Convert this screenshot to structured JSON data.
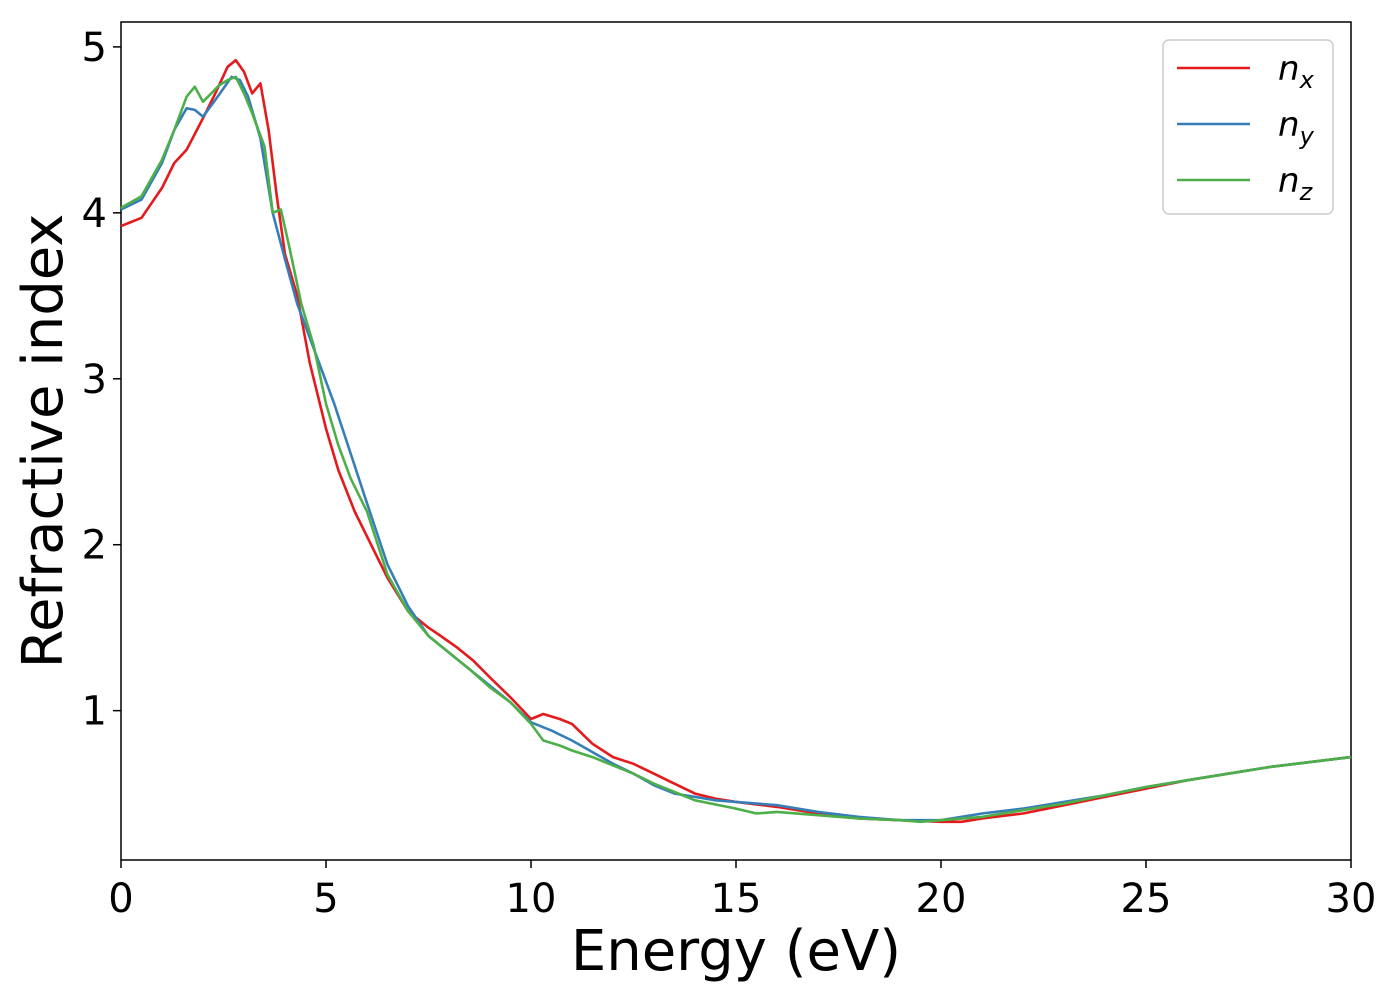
{
  "chart_data": {
    "type": "line",
    "xlabel": "Energy (eV)",
    "ylabel": "Refractive index",
    "xlim": [
      0,
      30
    ],
    "ylim": [
      0.1,
      5.15
    ],
    "xticks": [
      "0",
      "5",
      "10",
      "15",
      "20",
      "25",
      "30"
    ],
    "yticks": [
      "1",
      "2",
      "3",
      "4",
      "5"
    ],
    "grid": false,
    "legend_position": "top-right",
    "series": [
      {
        "name": "n",
        "subscript": "x",
        "color": "#e41a1c",
        "x": [
          0,
          0.5,
          1.0,
          1.3,
          1.6,
          2.0,
          2.3,
          2.6,
          2.8,
          3.0,
          3.2,
          3.4,
          3.6,
          3.8,
          4.0,
          4.3,
          4.6,
          5.0,
          5.3,
          5.7,
          6.0,
          6.5,
          7.0,
          7.5,
          7.8,
          8.2,
          8.6,
          9.0,
          9.5,
          10.0,
          10.3,
          10.7,
          11.0,
          11.5,
          12.0,
          12.5,
          13.0,
          13.5,
          14.0,
          14.5,
          15.0,
          16.0,
          17.0,
          18.0,
          19.0,
          20.0,
          20.5,
          21.0,
          22.0,
          23.0,
          24.0,
          25.0,
          26.0,
          27.0,
          28.0,
          29.0,
          30.0
        ],
        "values": [
          3.92,
          3.97,
          4.15,
          4.3,
          4.38,
          4.57,
          4.72,
          4.88,
          4.92,
          4.85,
          4.72,
          4.78,
          4.5,
          4.1,
          3.75,
          3.5,
          3.1,
          2.7,
          2.45,
          2.2,
          2.05,
          1.8,
          1.6,
          1.5,
          1.45,
          1.38,
          1.3,
          1.2,
          1.08,
          0.95,
          0.98,
          0.95,
          0.92,
          0.8,
          0.72,
          0.68,
          0.62,
          0.56,
          0.5,
          0.47,
          0.45,
          0.42,
          0.38,
          0.35,
          0.34,
          0.33,
          0.33,
          0.35,
          0.38,
          0.43,
          0.48,
          0.53,
          0.58,
          0.62,
          0.66,
          0.69,
          0.72
        ]
      },
      {
        "name": "n",
        "subscript": "y",
        "color": "#377eb8",
        "x": [
          0,
          0.5,
          1.0,
          1.3,
          1.6,
          1.8,
          2.0,
          2.3,
          2.5,
          2.7,
          2.9,
          3.1,
          3.4,
          3.7,
          4.0,
          4.3,
          4.6,
          4.9,
          5.2,
          5.6,
          6.0,
          6.5,
          7.0,
          7.5,
          8.0,
          8.5,
          9.0,
          9.5,
          10.0,
          10.5,
          11.0,
          11.5,
          12.0,
          12.5,
          13.0,
          13.5,
          14.0,
          14.5,
          15.0,
          16.0,
          17.0,
          18.0,
          19.0,
          20.0,
          21.0,
          22.0,
          23.0,
          24.0,
          25.0,
          26.0,
          27.0,
          28.0,
          29.0,
          30.0
        ],
        "values": [
          4.02,
          4.08,
          4.3,
          4.5,
          4.63,
          4.62,
          4.58,
          4.68,
          4.75,
          4.82,
          4.8,
          4.7,
          4.45,
          4.0,
          3.72,
          3.45,
          3.25,
          3.05,
          2.85,
          2.55,
          2.25,
          1.88,
          1.63,
          1.45,
          1.35,
          1.25,
          1.15,
          1.05,
          0.93,
          0.88,
          0.82,
          0.75,
          0.68,
          0.62,
          0.55,
          0.5,
          0.48,
          0.46,
          0.45,
          0.43,
          0.39,
          0.36,
          0.34,
          0.34,
          0.38,
          0.41,
          0.45,
          0.49,
          0.54,
          0.58,
          0.62,
          0.66,
          0.69,
          0.72
        ]
      },
      {
        "name": "n",
        "subscript": "z",
        "color": "#4daf4a",
        "x": [
          0,
          0.5,
          1.0,
          1.3,
          1.6,
          1.8,
          2.0,
          2.2,
          2.4,
          2.6,
          2.8,
          3.0,
          3.2,
          3.5,
          3.7,
          3.9,
          4.1,
          4.4,
          4.7,
          5.0,
          5.3,
          5.6,
          6.0,
          6.5,
          7.0,
          7.5,
          8.0,
          8.5,
          9.0,
          9.5,
          10.0,
          10.3,
          10.7,
          11.0,
          11.5,
          12.0,
          12.5,
          13.0,
          13.5,
          14.0,
          15.0,
          15.5,
          16.0,
          17.0,
          18.0,
          19.0,
          19.5,
          20.0,
          21.0,
          22.0,
          23.0,
          24.0,
          25.0,
          26.0,
          27.0,
          28.0,
          29.0,
          30.0
        ],
        "values": [
          4.03,
          4.1,
          4.32,
          4.5,
          4.7,
          4.76,
          4.67,
          4.72,
          4.77,
          4.8,
          4.82,
          4.72,
          4.6,
          4.4,
          4.0,
          4.02,
          3.8,
          3.45,
          3.2,
          2.85,
          2.6,
          2.4,
          2.2,
          1.82,
          1.6,
          1.45,
          1.35,
          1.25,
          1.14,
          1.05,
          0.92,
          0.82,
          0.79,
          0.76,
          0.72,
          0.67,
          0.62,
          0.56,
          0.51,
          0.46,
          0.41,
          0.38,
          0.39,
          0.37,
          0.35,
          0.34,
          0.33,
          0.34,
          0.36,
          0.4,
          0.44,
          0.49,
          0.54,
          0.58,
          0.62,
          0.66,
          0.69,
          0.72
        ]
      }
    ]
  }
}
